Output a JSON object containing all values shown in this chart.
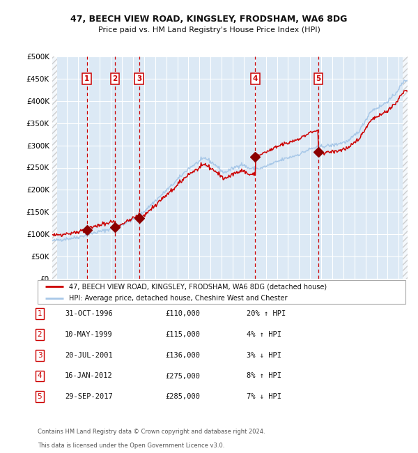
{
  "title1": "47, BEECH VIEW ROAD, KINGSLEY, FRODSHAM, WA6 8DG",
  "title2": "Price paid vs. HM Land Registry's House Price Index (HPI)",
  "ylim": [
    0,
    500000
  ],
  "yticks": [
    0,
    50000,
    100000,
    150000,
    200000,
    250000,
    300000,
    350000,
    400000,
    450000,
    500000
  ],
  "xlim_start": 1993.7,
  "xlim_end": 2025.8,
  "bg_color": "#dce9f5",
  "grid_color": "#ffffff",
  "hpi_color": "#a8c8e8",
  "price_color": "#cc0000",
  "marker_color": "#8b0000",
  "transactions": [
    {
      "num": 1,
      "date_x": 1996.83,
      "price": 110000,
      "label": "1"
    },
    {
      "num": 2,
      "date_x": 1999.36,
      "price": 115000,
      "label": "2"
    },
    {
      "num": 3,
      "date_x": 2001.55,
      "price": 136000,
      "label": "3"
    },
    {
      "num": 4,
      "date_x": 2012.04,
      "price": 275000,
      "label": "4"
    },
    {
      "num": 5,
      "date_x": 2017.75,
      "price": 285000,
      "label": "5"
    }
  ],
  "legend_line1": "47, BEECH VIEW ROAD, KINGSLEY, FRODSHAM, WA6 8DG (detached house)",
  "legend_line2": "HPI: Average price, detached house, Cheshire West and Chester",
  "table": [
    {
      "num": "1",
      "date": "31-OCT-1996",
      "price": "£110,000",
      "hpi": "20% ↑ HPI"
    },
    {
      "num": "2",
      "date": "10-MAY-1999",
      "price": "£115,000",
      "hpi": "4% ↑ HPI"
    },
    {
      "num": "3",
      "date": "20-JUL-2001",
      "price": "£136,000",
      "hpi": "3% ↓ HPI"
    },
    {
      "num": "4",
      "date": "16-JAN-2012",
      "price": "£275,000",
      "hpi": "8% ↑ HPI"
    },
    {
      "num": "5",
      "date": "29-SEP-2017",
      "price": "£285,000",
      "hpi": "7% ↓ HPI"
    }
  ],
  "footnote1": "Contains HM Land Registry data © Crown copyright and database right 2024.",
  "footnote2": "This data is licensed under the Open Government Licence v3.0."
}
